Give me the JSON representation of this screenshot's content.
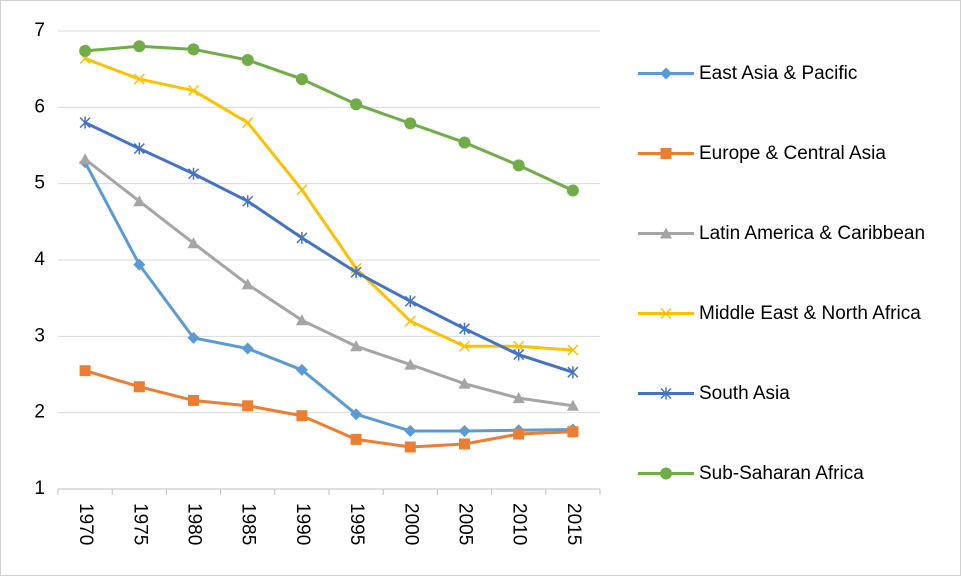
{
  "chart_data": {
    "type": "line",
    "categories": [
      "1970",
      "1975",
      "1980",
      "1985",
      "1990",
      "1995",
      "2000",
      "2005",
      "2010",
      "2015"
    ],
    "ylim": [
      1,
      7
    ],
    "yticks": [
      1,
      2,
      3,
      4,
      5,
      6,
      7
    ],
    "grid": true,
    "legend": "right",
    "series": [
      {
        "name": "East Asia & Pacific",
        "color": "#5b9bd5",
        "marker": "diamond",
        "values": [
          5.28,
          3.94,
          2.98,
          2.84,
          2.56,
          1.98,
          1.76,
          1.76,
          1.77,
          1.78
        ]
      },
      {
        "name": "Europe & Central Asia",
        "color": "#ed7d31",
        "marker": "square",
        "values": [
          2.55,
          2.34,
          2.16,
          2.09,
          1.96,
          1.65,
          1.55,
          1.59,
          1.72,
          1.75
        ]
      },
      {
        "name": "Latin America & Caribbean",
        "color": "#a5a5a5",
        "marker": "triangle",
        "values": [
          5.32,
          4.77,
          4.22,
          3.68,
          3.21,
          2.87,
          2.63,
          2.38,
          2.19,
          2.09
        ]
      },
      {
        "name": "Middle East & North Africa",
        "color": "#ffc000",
        "marker": "x",
        "values": [
          6.64,
          6.37,
          6.22,
          5.8,
          4.92,
          3.89,
          3.2,
          2.87,
          2.87,
          2.82
        ]
      },
      {
        "name": "South Asia",
        "color": "#4472c4",
        "marker": "star",
        "values": [
          5.8,
          5.46,
          5.13,
          4.77,
          4.29,
          3.84,
          3.46,
          3.1,
          2.76,
          2.53
        ]
      },
      {
        "name": "Sub-Saharan Africa",
        "color": "#70ad47",
        "marker": "circle",
        "values": [
          6.74,
          6.8,
          6.76,
          6.62,
          6.37,
          6.04,
          5.79,
          5.54,
          5.24,
          4.91
        ]
      }
    ]
  }
}
